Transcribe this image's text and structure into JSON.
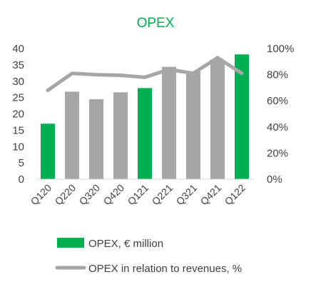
{
  "chart_data": {
    "type": "bar",
    "title": "OPEX",
    "categories": [
      "Q120",
      "Q220",
      "Q320",
      "Q420",
      "Q121",
      "Q221",
      "Q321",
      "Q421",
      "Q122"
    ],
    "series": [
      {
        "name": "OPEX, € million",
        "type": "bar",
        "axis": "left",
        "values": [
          17.0,
          26.8,
          24.5,
          26.6,
          27.9,
          34.4,
          33.0,
          36.5,
          38.2
        ],
        "bar_colors": [
          "#00B050",
          "#A6A6A6",
          "#A6A6A6",
          "#A6A6A6",
          "#00B050",
          "#A6A6A6",
          "#A6A6A6",
          "#A6A6A6",
          "#00B050"
        ]
      },
      {
        "name": "OPEX in relation to revenues, %",
        "type": "line",
        "axis": "right",
        "values": [
          68,
          81,
          80,
          79.5,
          78,
          84,
          81,
          93,
          81
        ],
        "color": "#A6A6A6"
      }
    ],
    "left_axis": {
      "ylim": [
        0,
        40
      ],
      "ticks": [
        "0",
        "5",
        "10",
        "15",
        "20",
        "25",
        "30",
        "35",
        "40"
      ]
    },
    "right_axis": {
      "ylim": [
        0,
        100
      ],
      "ticks": [
        "0%",
        "20%",
        "40%",
        "60%",
        "80%",
        "100%"
      ]
    },
    "grid": false,
    "legend_position": "bottom",
    "colors": {
      "title": "#00B050",
      "highlight": "#00B050",
      "bar": "#A6A6A6",
      "line": "#A6A6A6",
      "text": "#404040"
    }
  }
}
